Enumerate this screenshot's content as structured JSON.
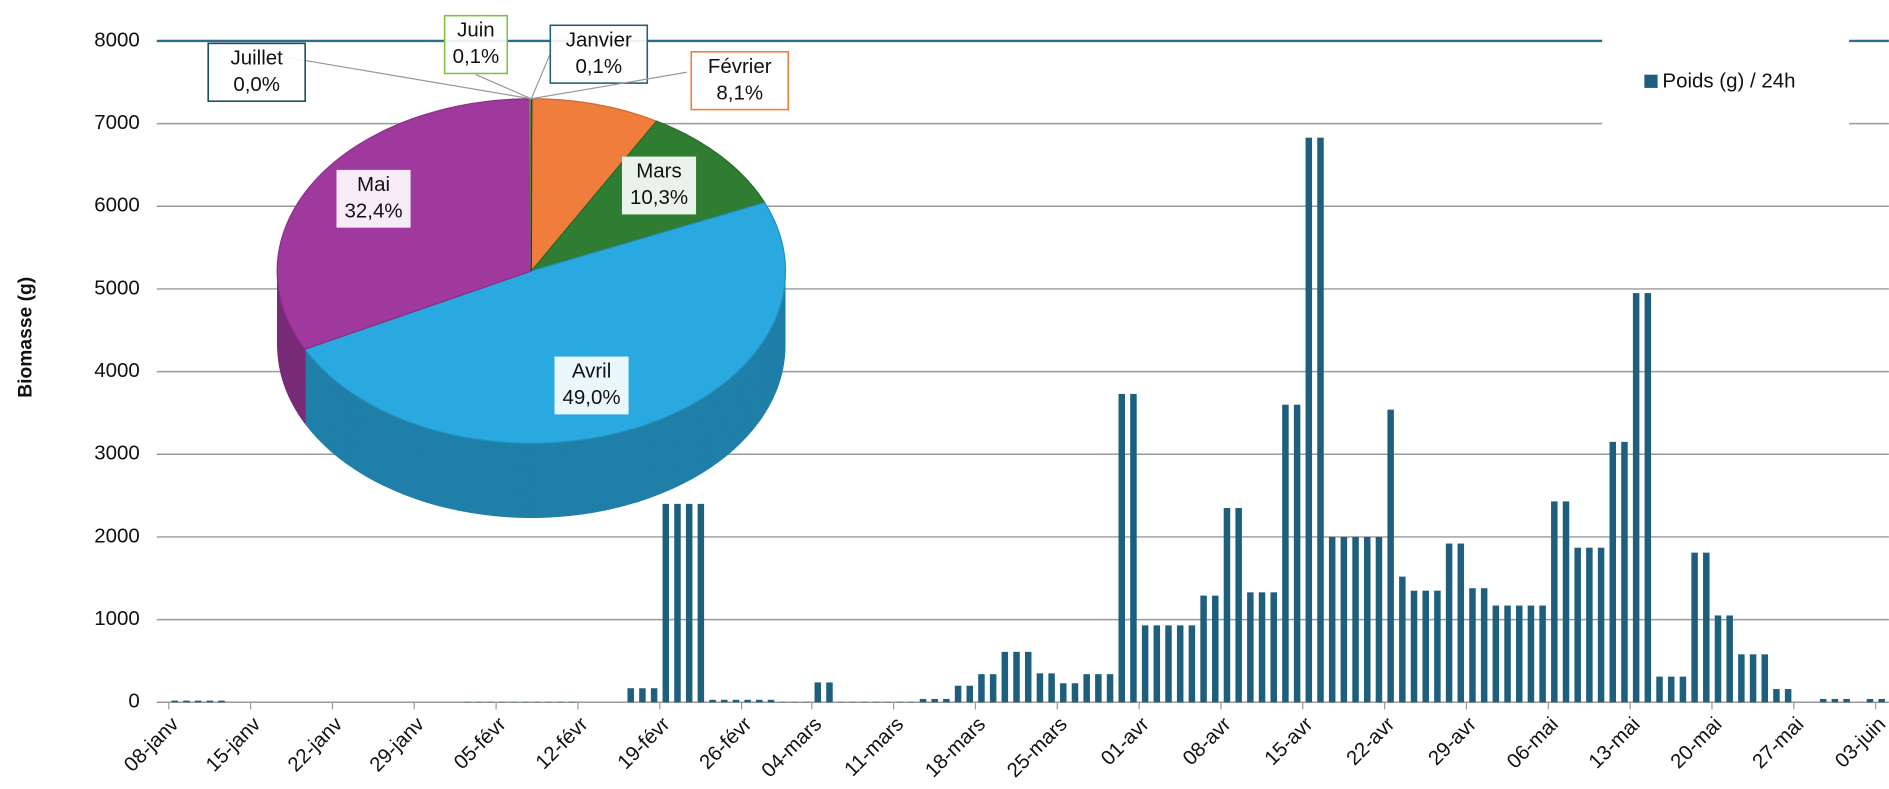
{
  "chart_data": [
    {
      "type": "bar",
      "y_label": "Biomasse (g)",
      "categories": [
        "08-janv",
        null,
        null,
        null,
        null,
        null,
        null,
        "15-janv",
        null,
        null,
        null,
        null,
        null,
        null,
        "22-janv",
        null,
        null,
        null,
        null,
        null,
        null,
        "29-janv",
        null,
        null,
        null,
        null,
        null,
        null,
        "05-févr",
        null,
        null,
        null,
        null,
        null,
        null,
        "12-févr",
        null,
        null,
        null,
        null,
        null,
        null,
        "19-févr",
        null,
        null,
        null,
        null,
        null,
        null,
        "26-févr",
        null,
        null,
        null,
        null,
        null,
        "04-mars",
        null,
        null,
        null,
        null,
        null,
        null,
        "11-mars",
        null,
        null,
        null,
        null,
        null,
        null,
        "18-mars",
        null,
        null,
        null,
        null,
        null,
        null,
        "25-mars",
        null,
        null,
        null,
        null,
        null,
        null,
        "01-avr",
        null,
        null,
        null,
        null,
        null,
        null,
        "08-avr",
        null,
        null,
        null,
        null,
        null,
        null,
        "15-avr",
        null,
        null,
        null,
        null,
        null,
        null,
        "22-avr",
        null,
        null,
        null,
        null,
        null,
        null,
        "29-avr",
        null,
        null,
        null,
        null,
        null,
        null,
        "06-mai",
        null,
        null,
        null,
        null,
        null,
        null,
        "13-mai",
        null,
        null,
        null,
        null,
        null,
        null,
        "20-mai",
        null,
        null,
        null,
        null,
        null,
        null,
        "27-mai",
        null,
        null,
        null,
        null,
        null,
        null,
        "03-juin"
      ],
      "series": [
        {
          "name": "Poids (g) / 24h",
          "color": "#1f5f7e",
          "values": [
            20,
            20,
            20,
            20,
            20,
            0,
            0,
            0,
            0,
            0,
            0,
            0,
            0,
            0,
            0,
            0,
            0,
            0,
            0,
            0,
            0,
            0,
            0,
            0,
            0,
            5,
            5,
            5,
            5,
            5,
            5,
            5,
            5,
            5,
            5,
            0,
            0,
            0,
            0,
            170,
            170,
            170,
            2400,
            2400,
            2400,
            2400,
            30,
            30,
            30,
            30,
            30,
            30,
            5,
            5,
            5,
            240,
            240,
            5,
            5,
            5,
            5,
            5,
            5,
            5,
            40,
            40,
            40,
            200,
            200,
            340,
            340,
            610,
            610,
            610,
            350,
            350,
            230,
            230,
            340,
            340,
            340,
            3730,
            3730,
            930,
            930,
            930,
            930,
            930,
            1290,
            1290,
            2350,
            2350,
            1330,
            1330,
            1330,
            3600,
            3600,
            6830,
            6830,
            2000,
            2000,
            2000,
            2000,
            2000,
            3540,
            1520,
            1350,
            1350,
            1350,
            1920,
            1920,
            1380,
            1380,
            1170,
            1170,
            1170,
            1170,
            1170,
            2430,
            2430,
            1870,
            1870,
            1870,
            3150,
            3150,
            4950,
            4950,
            310,
            310,
            310,
            1810,
            1810,
            1050,
            1050,
            580,
            580,
            580,
            160,
            160,
            0,
            0,
            40,
            40,
            40,
            0,
            40,
            40
          ]
        }
      ],
      "ylim": [
        0,
        8000
      ],
      "yticks": [
        0,
        1000,
        2000,
        3000,
        4000,
        5000,
        6000,
        7000,
        8000
      ],
      "grid": true,
      "legend": "top-right"
    },
    {
      "type": "pie",
      "categories": [
        "Janvier",
        "Février",
        "Mars",
        "Avril",
        "Mai",
        "Juin",
        "Juillet"
      ],
      "values": [
        0.1,
        8.1,
        10.3,
        49.0,
        32.4,
        0.1,
        0.0
      ],
      "value_labels": [
        "0,1%",
        "8,1%",
        "10,3%",
        "49,0%",
        "32,4%",
        "0,1%",
        "0,0%"
      ],
      "colors": [
        "#1f5f7a",
        "#f07d3c",
        "#2e7d32",
        "#29a9e0",
        "#a0399e",
        "#7dc242",
        "#174a5c"
      ]
    }
  ]
}
